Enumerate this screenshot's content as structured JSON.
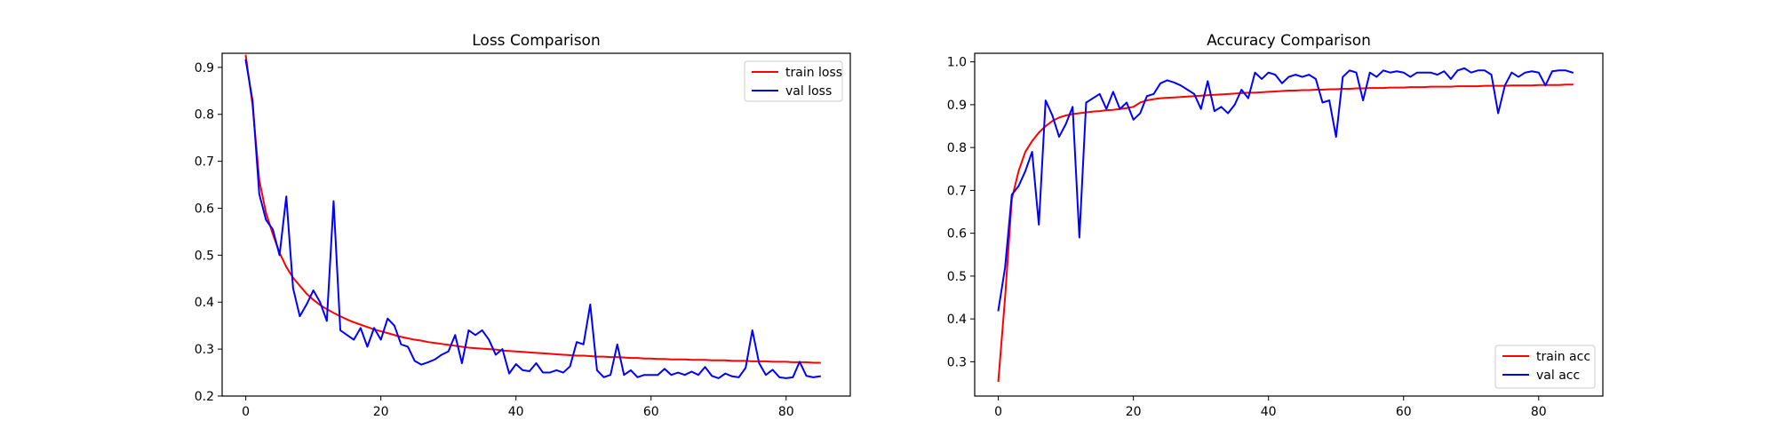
{
  "chart_data": [
    {
      "type": "line",
      "title": "Loss Comparison",
      "xlabel": "",
      "ylabel": "",
      "xlim": [
        -3.5,
        89.5
      ],
      "ylim": [
        0.2,
        0.93
      ],
      "xticks": [
        0,
        20,
        40,
        60,
        80
      ],
      "yticks": [
        0.2,
        0.3,
        0.4,
        0.5,
        0.6,
        0.7,
        0.8,
        0.9
      ],
      "grid": false,
      "legend": "top-right",
      "series": [
        {
          "name": "train loss",
          "color": "#ff0000",
          "x": [
            0,
            1,
            2,
            3,
            4,
            5,
            6,
            7,
            8,
            9,
            10,
            11,
            12,
            13,
            14,
            15,
            16,
            17,
            18,
            19,
            20,
            21,
            22,
            23,
            24,
            25,
            26,
            27,
            28,
            29,
            30,
            31,
            32,
            33,
            34,
            35,
            36,
            37,
            38,
            39,
            40,
            41,
            42,
            43,
            44,
            45,
            46,
            47,
            48,
            49,
            50,
            51,
            52,
            53,
            54,
            55,
            56,
            57,
            58,
            59,
            60,
            61,
            62,
            63,
            64,
            65,
            66,
            67,
            68,
            69,
            70,
            71,
            72,
            73,
            74,
            75,
            76,
            77,
            78,
            79,
            80,
            81,
            82,
            83,
            84,
            85
          ],
          "values": [
            0.925,
            0.82,
            0.66,
            0.59,
            0.545,
            0.505,
            0.475,
            0.452,
            0.435,
            0.418,
            0.405,
            0.394,
            0.385,
            0.377,
            0.37,
            0.363,
            0.357,
            0.352,
            0.347,
            0.342,
            0.338,
            0.334,
            0.33,
            0.326,
            0.323,
            0.32,
            0.318,
            0.315,
            0.313,
            0.311,
            0.309,
            0.307,
            0.305,
            0.303,
            0.302,
            0.301,
            0.3,
            0.299,
            0.297,
            0.296,
            0.295,
            0.294,
            0.293,
            0.292,
            0.291,
            0.29,
            0.289,
            0.288,
            0.287,
            0.286,
            0.286,
            0.285,
            0.284,
            0.284,
            0.283,
            0.283,
            0.282,
            0.281,
            0.281,
            0.28,
            0.28,
            0.279,
            0.279,
            0.278,
            0.278,
            0.278,
            0.277,
            0.277,
            0.277,
            0.276,
            0.276,
            0.276,
            0.275,
            0.275,
            0.275,
            0.274,
            0.274,
            0.274,
            0.273,
            0.273,
            0.273,
            0.272,
            0.272,
            0.272,
            0.271,
            0.271
          ]
        },
        {
          "name": "val loss",
          "color": "#0000ff",
          "x": [
            0,
            1,
            2,
            3,
            4,
            5,
            6,
            7,
            8,
            9,
            10,
            11,
            12,
            13,
            14,
            15,
            16,
            17,
            18,
            19,
            20,
            21,
            22,
            23,
            24,
            25,
            26,
            27,
            28,
            29,
            30,
            31,
            32,
            33,
            34,
            35,
            36,
            37,
            38,
            39,
            40,
            41,
            42,
            43,
            44,
            45,
            46,
            47,
            48,
            49,
            50,
            51,
            52,
            53,
            54,
            55,
            56,
            57,
            58,
            59,
            60,
            61,
            62,
            63,
            64,
            65,
            66,
            67,
            68,
            69,
            70,
            71,
            72,
            73,
            74,
            75,
            76,
            77,
            78,
            79,
            80,
            81,
            82,
            83,
            84,
            85
          ],
          "values": [
            0.915,
            0.83,
            0.63,
            0.575,
            0.555,
            0.5,
            0.625,
            0.43,
            0.37,
            0.395,
            0.425,
            0.4,
            0.36,
            0.615,
            0.34,
            0.33,
            0.32,
            0.345,
            0.305,
            0.345,
            0.32,
            0.365,
            0.35,
            0.31,
            0.305,
            0.275,
            0.267,
            0.272,
            0.278,
            0.288,
            0.295,
            0.33,
            0.27,
            0.34,
            0.33,
            0.34,
            0.32,
            0.288,
            0.3,
            0.248,
            0.268,
            0.255,
            0.253,
            0.27,
            0.25,
            0.25,
            0.255,
            0.25,
            0.263,
            0.315,
            0.31,
            0.395,
            0.255,
            0.24,
            0.245,
            0.31,
            0.245,
            0.255,
            0.24,
            0.245,
            0.245,
            0.245,
            0.258,
            0.245,
            0.25,
            0.245,
            0.252,
            0.245,
            0.262,
            0.243,
            0.238,
            0.248,
            0.242,
            0.24,
            0.26,
            0.34,
            0.27,
            0.245,
            0.256,
            0.24,
            0.238,
            0.24,
            0.273,
            0.243,
            0.24,
            0.242
          ]
        }
      ]
    },
    {
      "type": "line",
      "title": "Accuracy Comparison",
      "xlabel": "",
      "ylabel": "",
      "xlim": [
        -3.5,
        89.5
      ],
      "ylim": [
        0.22,
        1.02
      ],
      "xticks": [
        0,
        20,
        40,
        60,
        80
      ],
      "yticks": [
        0.3,
        0.4,
        0.5,
        0.6,
        0.7,
        0.8,
        0.9,
        1.0
      ],
      "grid": false,
      "legend": "bottom-right",
      "series": [
        {
          "name": "train acc",
          "color": "#ff0000",
          "x": [
            0,
            1,
            2,
            3,
            4,
            5,
            6,
            7,
            8,
            9,
            10,
            11,
            12,
            13,
            14,
            15,
            16,
            17,
            18,
            19,
            20,
            21,
            22,
            23,
            24,
            25,
            26,
            27,
            28,
            29,
            30,
            31,
            32,
            33,
            34,
            35,
            36,
            37,
            38,
            39,
            40,
            41,
            42,
            43,
            44,
            45,
            46,
            47,
            48,
            49,
            50,
            51,
            52,
            53,
            54,
            55,
            56,
            57,
            58,
            59,
            60,
            61,
            62,
            63,
            64,
            65,
            66,
            67,
            68,
            69,
            70,
            71,
            72,
            73,
            74,
            75,
            76,
            77,
            78,
            79,
            80,
            81,
            82,
            83,
            84,
            85
          ],
          "values": [
            0.255,
            0.45,
            0.68,
            0.745,
            0.79,
            0.815,
            0.835,
            0.85,
            0.862,
            0.87,
            0.875,
            0.878,
            0.88,
            0.882,
            0.884,
            0.885,
            0.887,
            0.888,
            0.89,
            0.892,
            0.895,
            0.905,
            0.91,
            0.913,
            0.915,
            0.916,
            0.917,
            0.918,
            0.919,
            0.92,
            0.921,
            0.922,
            0.923,
            0.924,
            0.925,
            0.926,
            0.927,
            0.928,
            0.928,
            0.929,
            0.93,
            0.931,
            0.932,
            0.933,
            0.933,
            0.934,
            0.934,
            0.935,
            0.935,
            0.936,
            0.936,
            0.937,
            0.937,
            0.938,
            0.938,
            0.939,
            0.939,
            0.939,
            0.94,
            0.94,
            0.94,
            0.941,
            0.941,
            0.941,
            0.942,
            0.942,
            0.942,
            0.942,
            0.943,
            0.943,
            0.943,
            0.943,
            0.944,
            0.944,
            0.944,
            0.944,
            0.945,
            0.945,
            0.945,
            0.945,
            0.946,
            0.946,
            0.946,
            0.946,
            0.947,
            0.947
          ]
        },
        {
          "name": "val acc",
          "color": "#0000ff",
          "x": [
            0,
            1,
            2,
            3,
            4,
            5,
            6,
            7,
            8,
            9,
            10,
            11,
            12,
            13,
            14,
            15,
            16,
            17,
            18,
            19,
            20,
            21,
            22,
            23,
            24,
            25,
            26,
            27,
            28,
            29,
            30,
            31,
            32,
            33,
            34,
            35,
            36,
            37,
            38,
            39,
            40,
            41,
            42,
            43,
            44,
            45,
            46,
            47,
            48,
            49,
            50,
            51,
            52,
            53,
            54,
            55,
            56,
            57,
            58,
            59,
            60,
            61,
            62,
            63,
            64,
            65,
            66,
            67,
            68,
            69,
            70,
            71,
            72,
            73,
            74,
            75,
            76,
            77,
            78,
            79,
            80,
            81,
            82,
            83,
            84,
            85
          ],
          "values": [
            0.42,
            0.52,
            0.69,
            0.71,
            0.745,
            0.79,
            0.62,
            0.91,
            0.875,
            0.825,
            0.855,
            0.895,
            0.59,
            0.905,
            0.915,
            0.925,
            0.89,
            0.93,
            0.89,
            0.905,
            0.865,
            0.88,
            0.92,
            0.925,
            0.95,
            0.957,
            0.952,
            0.945,
            0.935,
            0.925,
            0.89,
            0.955,
            0.885,
            0.895,
            0.88,
            0.9,
            0.935,
            0.915,
            0.975,
            0.96,
            0.975,
            0.97,
            0.95,
            0.965,
            0.97,
            0.965,
            0.97,
            0.96,
            0.905,
            0.91,
            0.825,
            0.965,
            0.98,
            0.975,
            0.91,
            0.975,
            0.965,
            0.98,
            0.975,
            0.978,
            0.975,
            0.965,
            0.975,
            0.975,
            0.975,
            0.97,
            0.978,
            0.96,
            0.98,
            0.985,
            0.975,
            0.98,
            0.98,
            0.97,
            0.88,
            0.945,
            0.975,
            0.965,
            0.975,
            0.978,
            0.975,
            0.945,
            0.978,
            0.98,
            0.98,
            0.975
          ]
        }
      ]
    }
  ]
}
